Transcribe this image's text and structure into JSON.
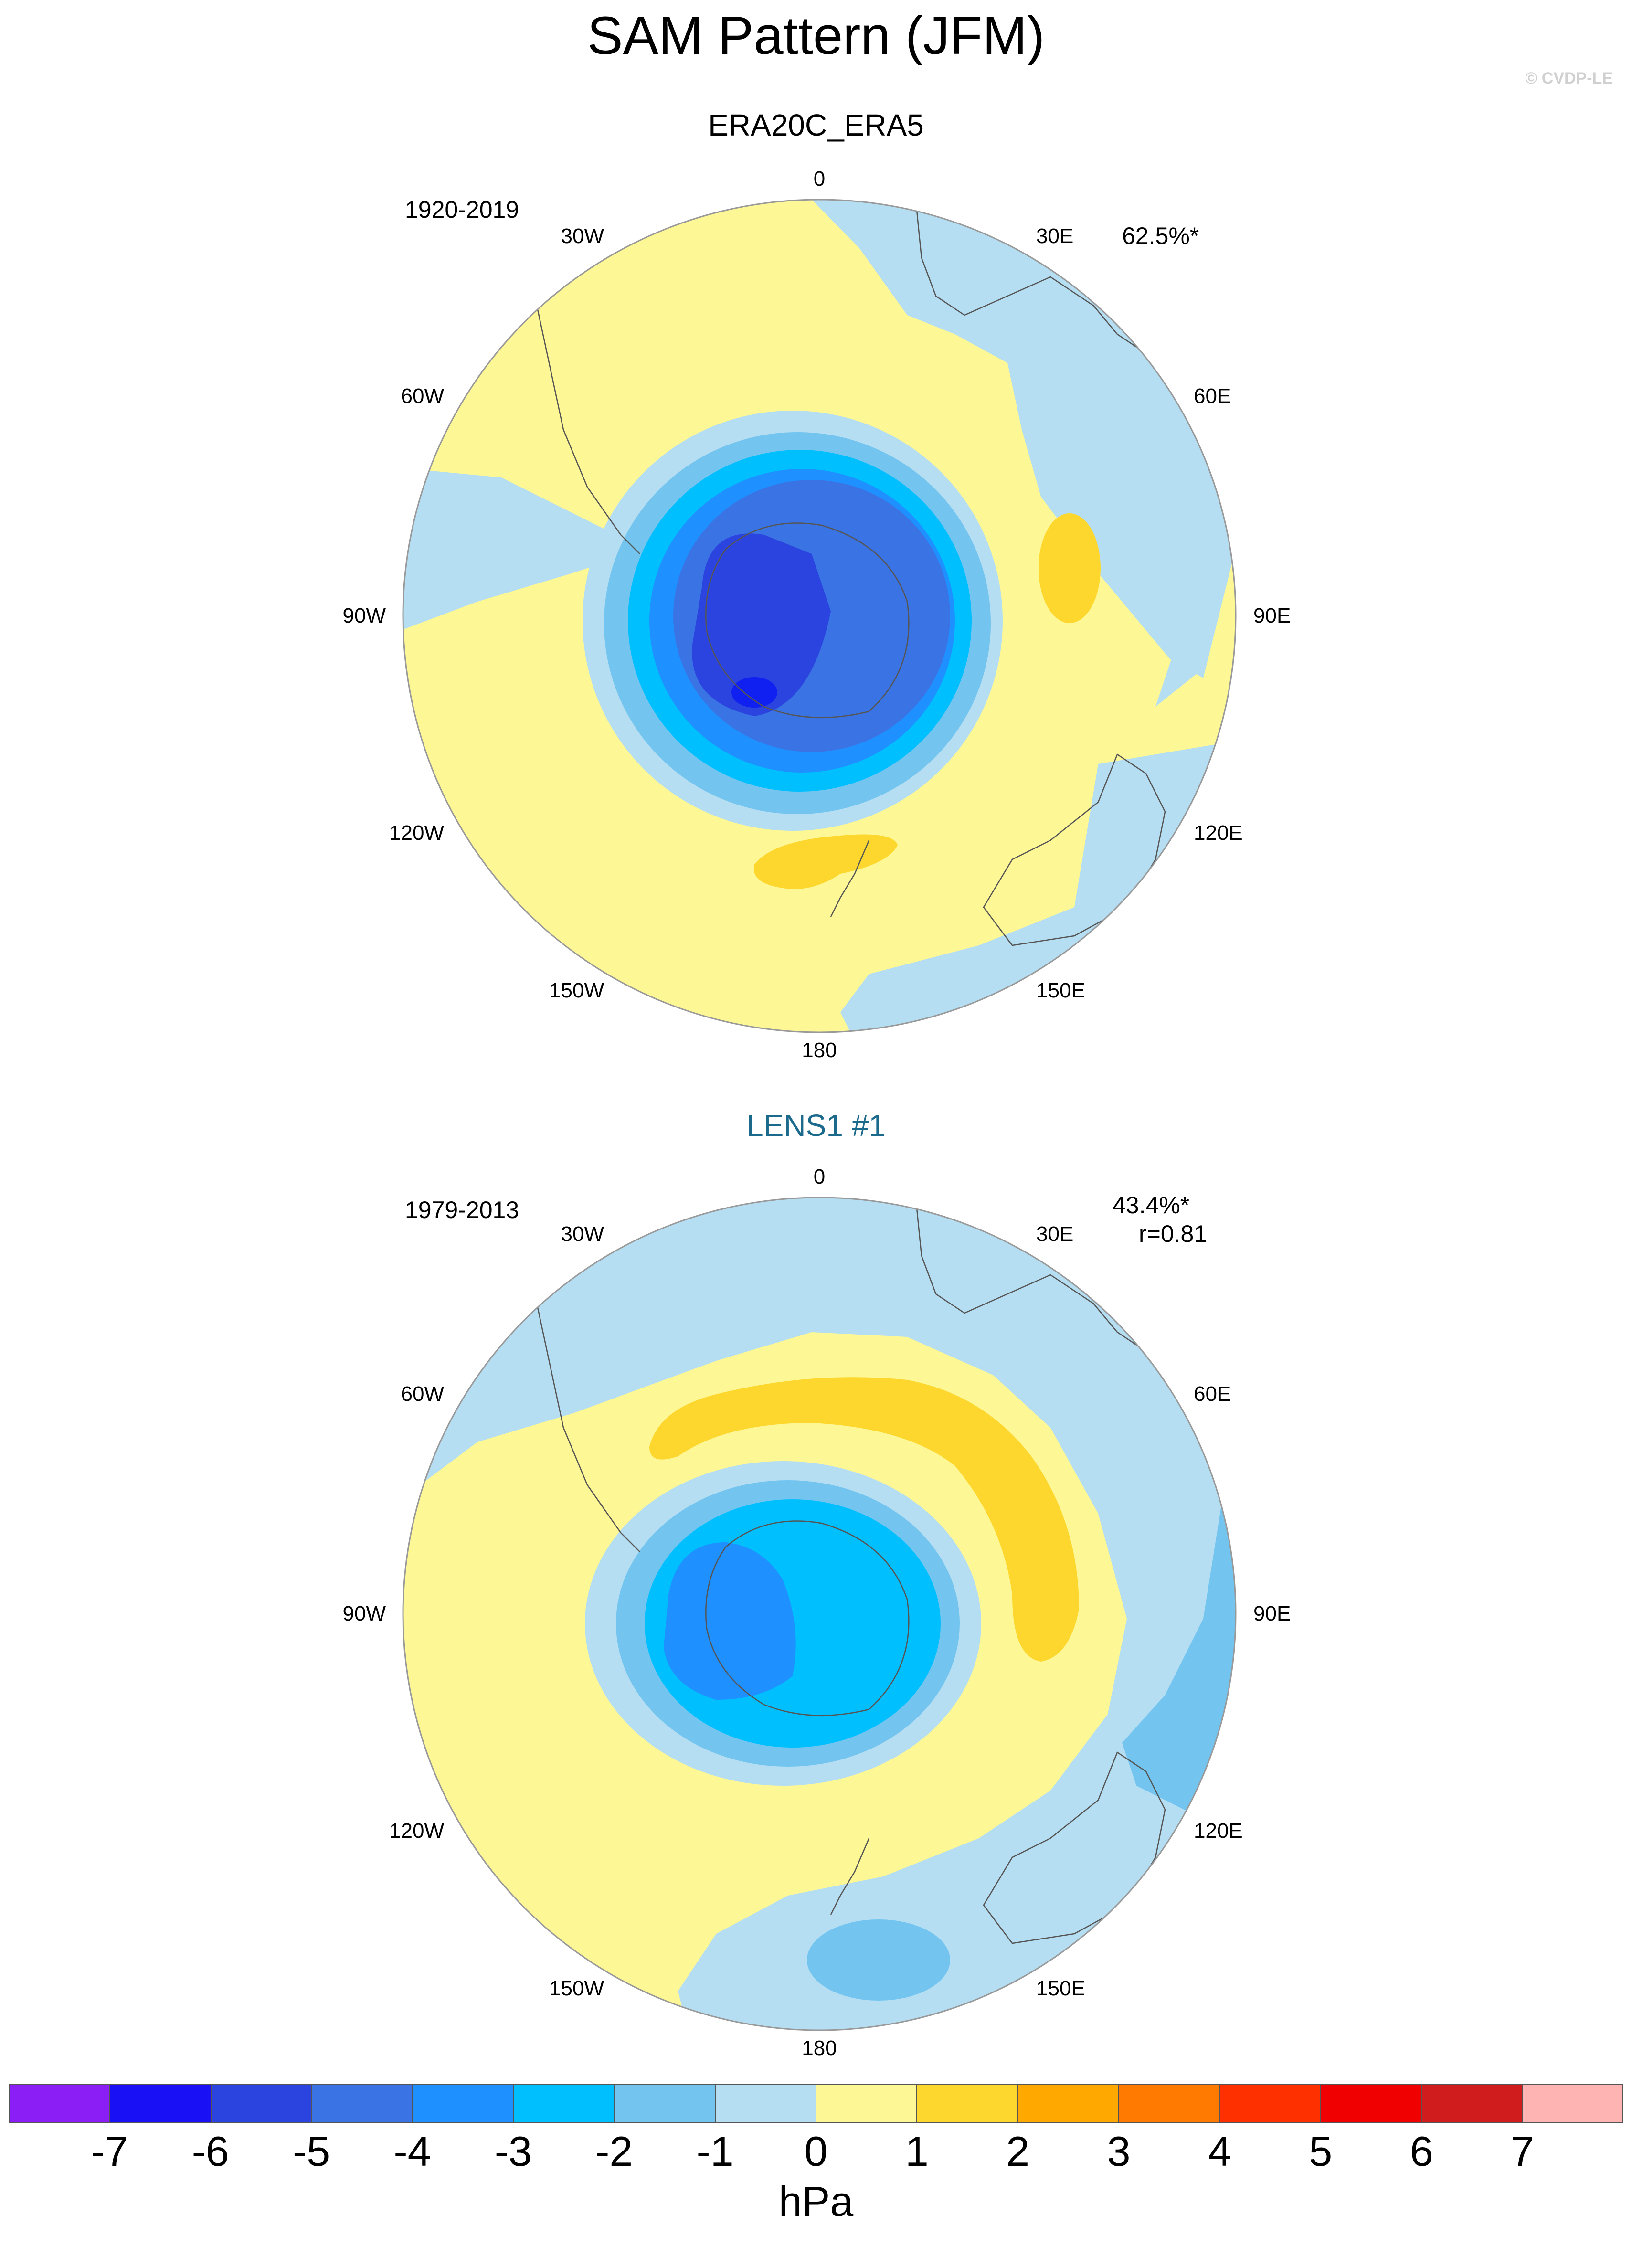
{
  "title": "SAM Pattern (JFM)",
  "watermark": "© CVDP-LE",
  "units": "hPa",
  "colors": {
    "ocean_neg1": "#b5def2",
    "pos1": "#fdf795",
    "pos2": "#fdd72e",
    "neg2": "#73c5ef",
    "neg3": "#00bfff",
    "neg4": "#1e90ff",
    "neg5": "#3a73e3",
    "neg6": "#2b44e0",
    "neg7": "#1020f0"
  },
  "colorbar": {
    "colors": [
      "#8a1ef5",
      "#1a10f5",
      "#2b44e0",
      "#3a73e3",
      "#1e90ff",
      "#00bfff",
      "#73c5ef",
      "#b5def2",
      "#fdf795",
      "#fdd72e",
      "#fea800",
      "#ff7a00",
      "#ff3000",
      "#f00000",
      "#d01c1c",
      "#ffb4b4"
    ],
    "ticks": [
      "-7",
      "-6",
      "-5",
      "-4",
      "-3",
      "-2",
      "-1",
      "0",
      "1",
      "2",
      "3",
      "4",
      "5",
      "6",
      "7"
    ]
  },
  "lon_labels": {
    "n": "0",
    "e30": "30E",
    "e60": "60E",
    "e90": "90E",
    "e120": "120E",
    "e150": "150E",
    "s": "180",
    "w150": "150W",
    "w120": "120W",
    "w90": "90W",
    "w60": "60W",
    "w30": "30W"
  },
  "panels": [
    {
      "title": "ERA20C_ERA5",
      "period": "1920-2019",
      "pct": "62.5%*",
      "corr": "",
      "title_color": "#000000"
    },
    {
      "title": "LENS1 #1",
      "period": "1979-2013",
      "pct": "43.4%*",
      "corr": "r=0.81",
      "title_color": "#1b6a8c"
    }
  ]
}
